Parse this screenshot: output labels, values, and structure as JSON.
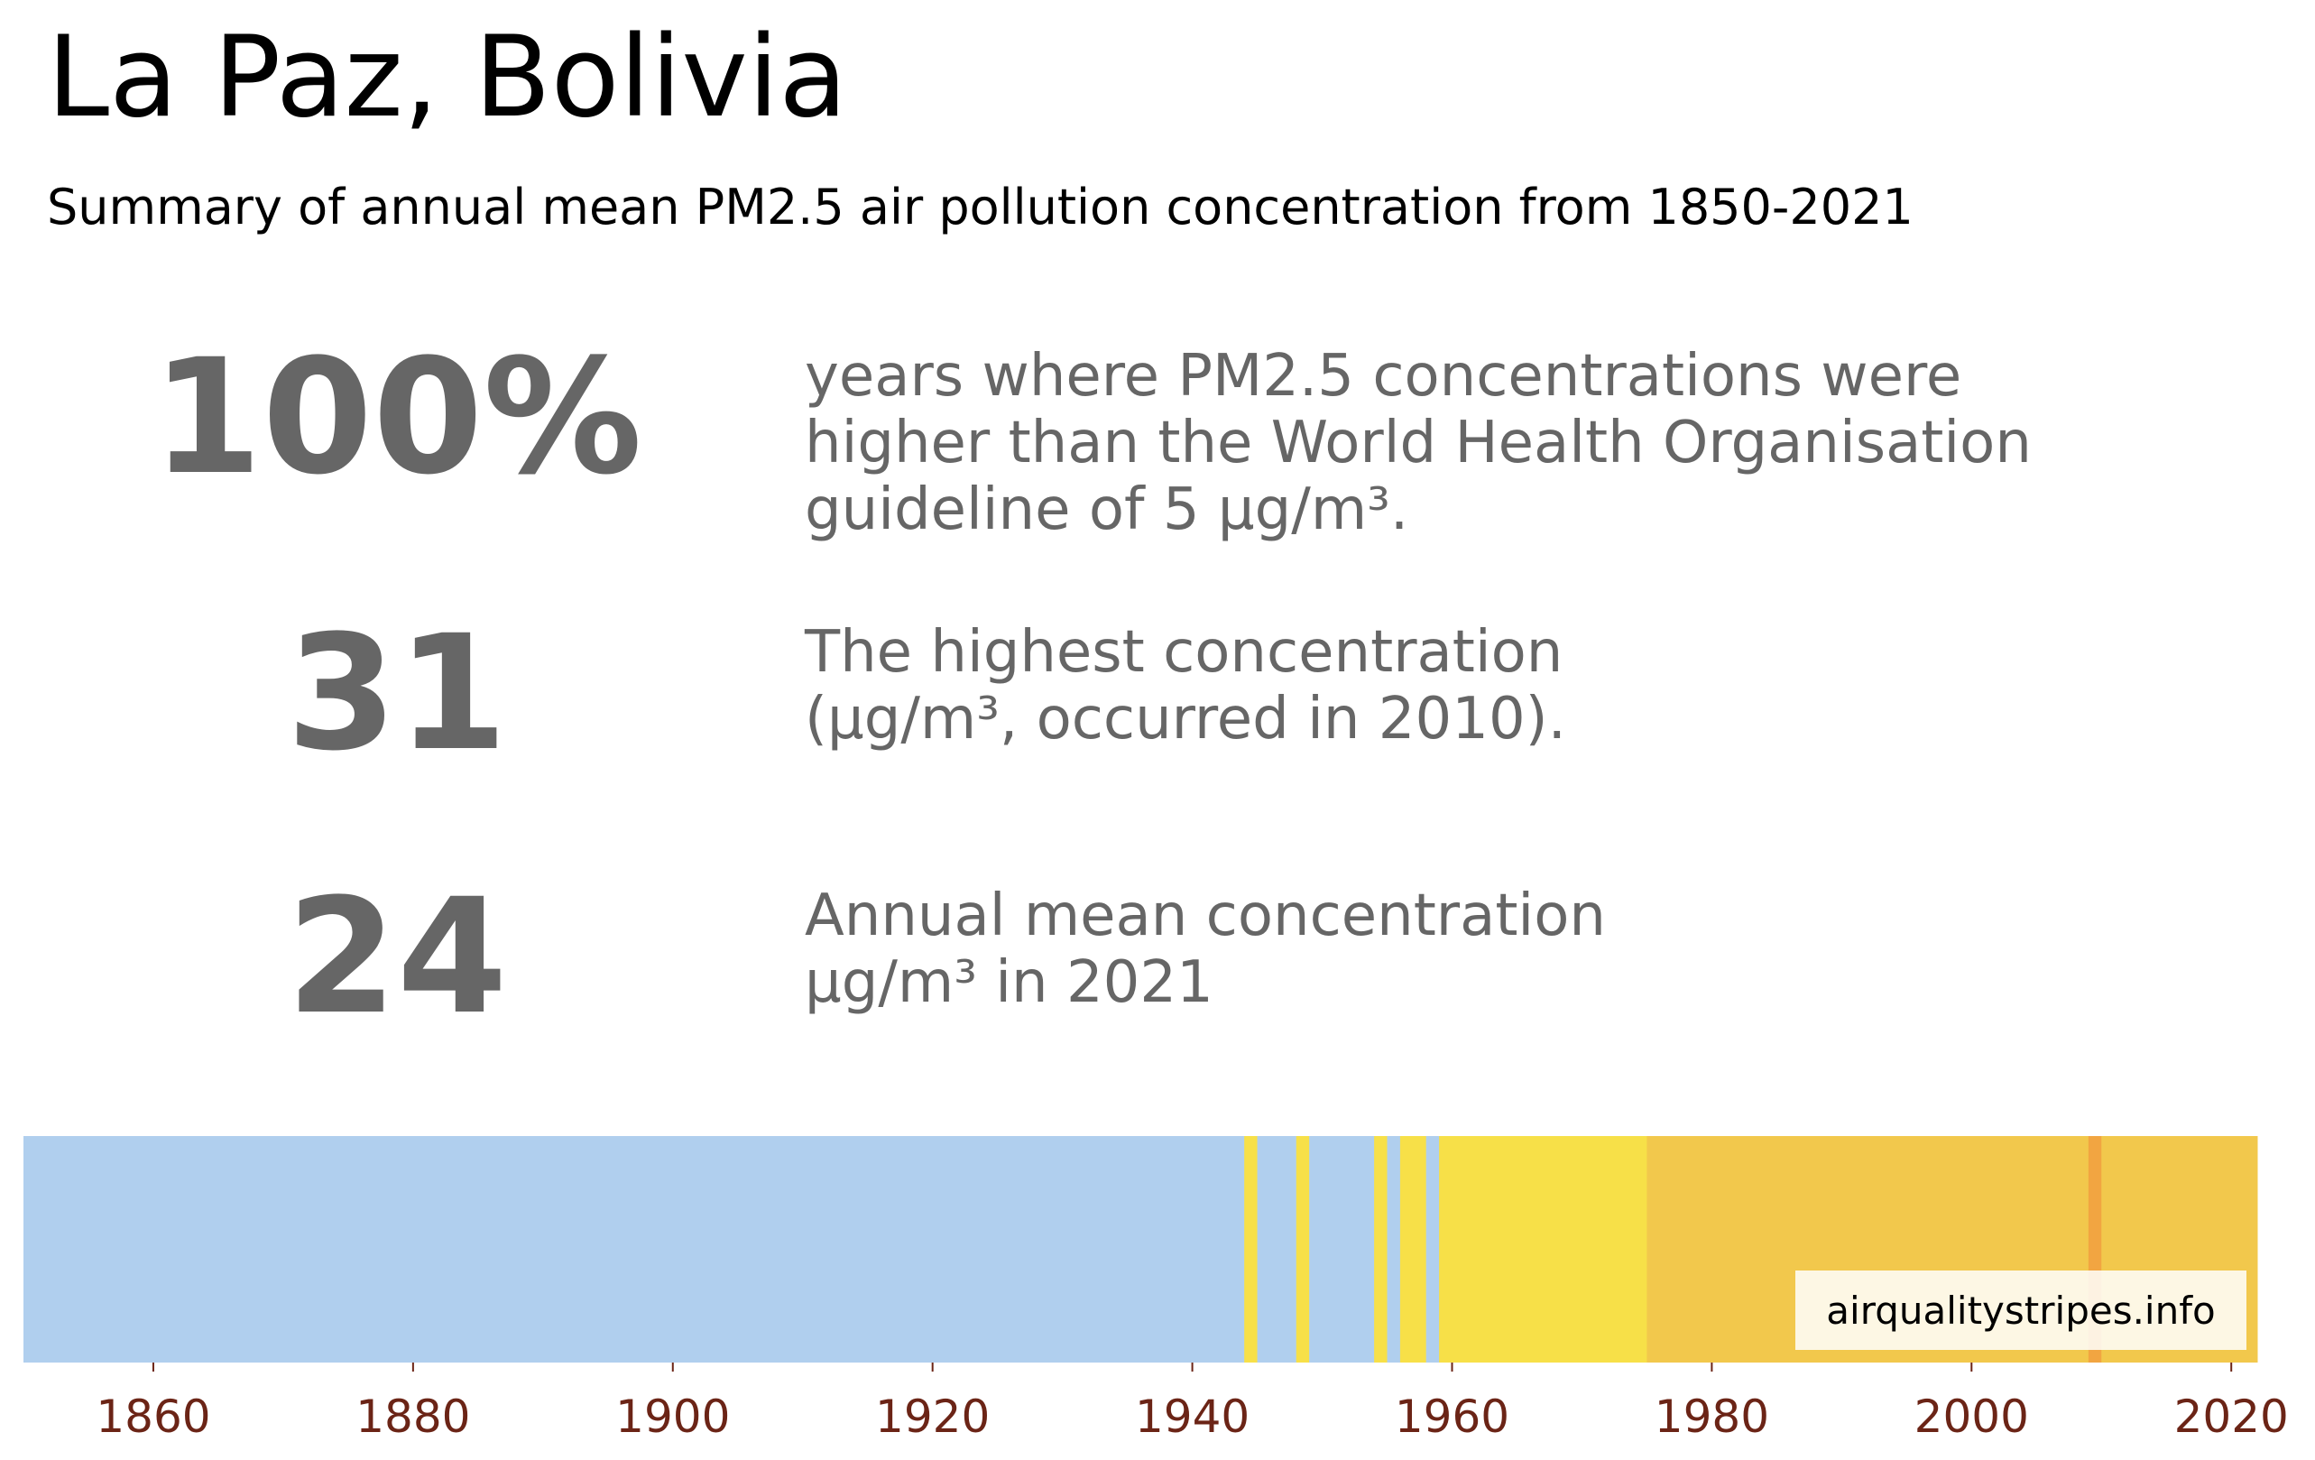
{
  "header": {
    "title": "La Paz, Bolivia",
    "subtitle": "Summary of annual mean PM2.5 air pollution concentration from 1850-2021"
  },
  "stats": [
    {
      "value": "100%",
      "desc": [
        "years where PM2.5 concentrations were",
        "higher than the World Health Organisation",
        "guideline of 5 µg/m³."
      ]
    },
    {
      "value": "31",
      "desc": [
        "The highest concentration",
        "(µg/m³, occurred in 2010)."
      ]
    },
    {
      "value": "24",
      "desc": [
        "Annual mean concentration",
        "µg/m³ in 2021"
      ]
    }
  ],
  "credit": "airqualitystripes.info",
  "colors": {
    "light_blue": "#b0cfee",
    "yellow": "#f7e048",
    "amber": "#f2c84c",
    "orange": "#f2a541",
    "stat_text": "#666666",
    "tick_text": "#6b2416"
  },
  "chart_data": {
    "type": "heatmap",
    "xlim": [
      1850,
      2022
    ],
    "x_ticks": [
      1860,
      1880,
      1900,
      1920,
      1940,
      1960,
      1980,
      2000,
      2020
    ],
    "segments": [
      {
        "start": 1850,
        "end": 1944,
        "color": "#b0cfee"
      },
      {
        "start": 1944,
        "end": 1945,
        "color": "#f7e048"
      },
      {
        "start": 1945,
        "end": 1948,
        "color": "#b0cfee"
      },
      {
        "start": 1948,
        "end": 1949,
        "color": "#f7e048"
      },
      {
        "start": 1949,
        "end": 1954,
        "color": "#b0cfee"
      },
      {
        "start": 1954,
        "end": 1955,
        "color": "#f7e048"
      },
      {
        "start": 1955,
        "end": 1956,
        "color": "#b0cfee"
      },
      {
        "start": 1956,
        "end": 1958,
        "color": "#f7e048"
      },
      {
        "start": 1958,
        "end": 1959,
        "color": "#b0cfee"
      },
      {
        "start": 1959,
        "end": 1975,
        "color": "#f7e048"
      },
      {
        "start": 1975,
        "end": 2009,
        "color": "#f2c84c"
      },
      {
        "start": 2009,
        "end": 2010,
        "color": "#f2a541"
      },
      {
        "start": 2010,
        "end": 2022,
        "color": "#f2c84c"
      }
    ]
  }
}
